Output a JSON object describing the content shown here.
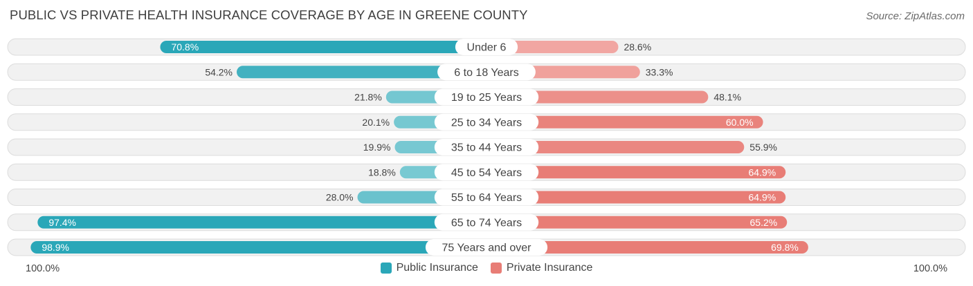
{
  "chart_data": {
    "type": "bar",
    "orientation": "diverging-horizontal",
    "title": "PUBLIC VS PRIVATE HEALTH INSURANCE COVERAGE BY AGE IN GREENE COUNTY",
    "source": "Source: ZipAtlas.com",
    "categories": [
      "Under 6",
      "6 to 18 Years",
      "19 to 25 Years",
      "25 to 34 Years",
      "35 to 44 Years",
      "45 to 54 Years",
      "55 to 64 Years",
      "65 to 74 Years",
      "75 Years and over"
    ],
    "series": [
      {
        "name": "Public Insurance",
        "values": [
          70.8,
          54.2,
          21.8,
          20.1,
          19.9,
          18.8,
          28.0,
          97.4,
          98.9
        ],
        "labels": [
          "70.8%",
          "54.2%",
          "21.8%",
          "20.1%",
          "19.9%",
          "18.8%",
          "28.0%",
          "97.4%",
          "98.9%"
        ]
      },
      {
        "name": "Private Insurance",
        "values": [
          28.6,
          33.3,
          48.1,
          60.0,
          55.9,
          64.9,
          64.9,
          65.2,
          69.8
        ],
        "labels": [
          "28.6%",
          "33.3%",
          "48.1%",
          "60.0%",
          "55.9%",
          "64.9%",
          "64.9%",
          "65.2%",
          "69.8%"
        ]
      }
    ],
    "xlim": [
      0,
      100
    ],
    "axis_left_label": "100.0%",
    "axis_right_label": "100.0%",
    "legend_position": "bottom-center"
  },
  "colors": {
    "public_strong": "#2aa7b8",
    "public_light": "#7ecbd4",
    "private_strong": "#e87d76",
    "private_light": "#f2aaa6",
    "track": "#f1f1f1",
    "track_border": "#dcdcdc"
  }
}
